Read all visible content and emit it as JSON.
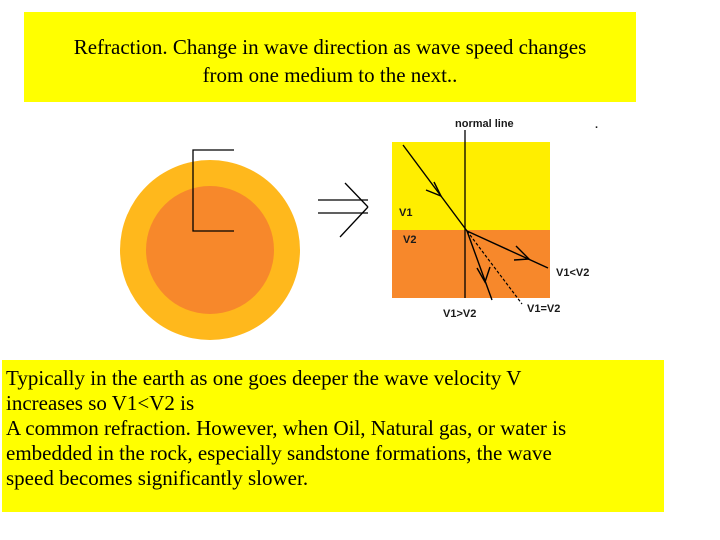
{
  "title": {
    "line1": "Refraction.  Change in wave direction as wave speed changes",
    "line2": "from one medium to the next.."
  },
  "diagram": {
    "normal_line_label": "normal line",
    "v1_label": "V1",
    "v2_label": "V2",
    "v1_lt_v2_label": "V1<V2",
    "v1_gt_v2_label": "V1>V2",
    "v1_eq_v2_label": "V1=V2",
    "colors": {
      "upper_medium": "#ffee00",
      "lower_medium": "#f7882b",
      "earth_outer": "#ffb81c",
      "earth_inner": "#f7882b"
    }
  },
  "body": {
    "line1": "Typically in the earth as one goes deeper the wave velocity V",
    "line2": "increases so V1<V2 is",
    "line3": "A common refraction.  However, when Oil, Natural gas, or water is",
    "line4": "embedded in the rock, especially sandstone formations, the wave",
    "line5": "speed becomes significantly slower."
  }
}
